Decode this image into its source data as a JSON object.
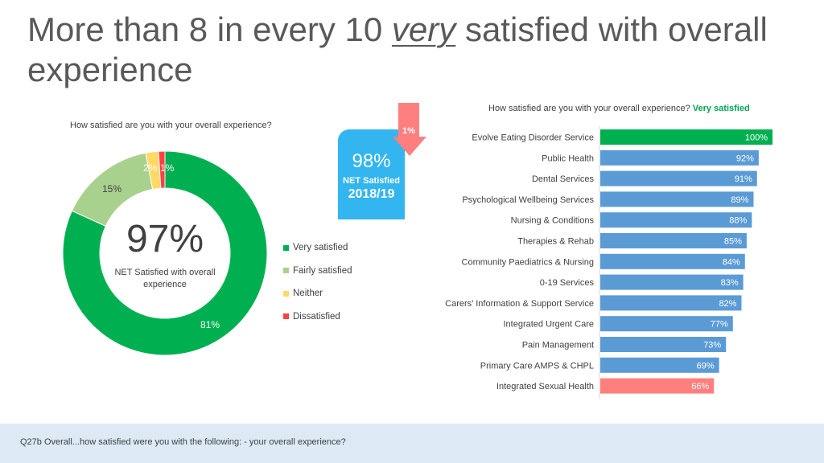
{
  "title": {
    "before": "More than 8 in every 10",
    "emphasis": "very",
    "after": "satisfied with overall experience"
  },
  "donut": {
    "question": "How satisfied  are you with your overall experience?",
    "center_value": "97%",
    "center_label": "NET Satisfied with overall experience",
    "slice_labels": {
      "very_satisfied": "81%",
      "fairly_satisfied": "15%",
      "neither": "2%",
      "dissatisfied": "1%"
    }
  },
  "legend": [
    {
      "label": "Very satisfied",
      "color": "#00b050"
    },
    {
      "label": "Fairly satisfied",
      "color": "#a9d18e"
    },
    {
      "label": "Neither",
      "color": "#ffd966"
    },
    {
      "label": "Dissatisfied",
      "color": "#ff4040"
    }
  ],
  "net_box": {
    "change": "1%",
    "percent": "98%",
    "label": "NET Satisfied",
    "year": "2018/19",
    "color": "#33b5f0",
    "arrow_color": "#ff7f7f"
  },
  "bar_chart": {
    "question": "How satisfied are you with your overall experience?",
    "highlight": "Very satisfied"
  },
  "footer": {
    "text": "Q27b Overall...how satisfied were you with the following: - your overall experience?"
  },
  "chart_data": [
    {
      "type": "pie",
      "variant": "donut",
      "title": "How satisfied  are you with your overall experience?",
      "categories": [
        "Very satisfied",
        "Fairly satisfied",
        "Neither",
        "Dissatisfied"
      ],
      "values": [
        81,
        15,
        2,
        1
      ],
      "colors": [
        "#00b050",
        "#a9d18e",
        "#ffd966",
        "#ff4040"
      ],
      "legend": "right"
    },
    {
      "type": "bar",
      "orientation": "horizontal",
      "title": "How satisfied are you with your overall experience? Very satisfied",
      "categories": [
        "Evolve Eating Disorder Service",
        "Public Health",
        "Dental Services",
        "Psychological Wellbeing Services",
        "Nursing & Conditions",
        "Therapies & Rehab",
        "Community Paediatrics & Nursing",
        "0-19 Services",
        "Carers’ Information & Support Service",
        "Integrated Urgent Care",
        "Pain Management",
        "Primary Care AMPS & CHPL",
        "Integrated Sexual Health"
      ],
      "values": [
        100,
        92,
        91,
        89,
        88,
        85,
        84,
        83,
        82,
        77,
        73,
        69,
        66
      ],
      "value_labels": [
        "100%",
        "92%",
        "91%",
        "89%",
        "88%",
        "85%",
        "84%",
        "83%",
        "82%",
        "77%",
        "73%",
        "69%",
        "66%"
      ],
      "colors": [
        "#00b050",
        "#5b9bd5",
        "#5b9bd5",
        "#5b9bd5",
        "#5b9bd5",
        "#5b9bd5",
        "#5b9bd5",
        "#5b9bd5",
        "#5b9bd5",
        "#5b9bd5",
        "#5b9bd5",
        "#5b9bd5",
        "#ff7f7f"
      ],
      "xlim": [
        0,
        100
      ]
    }
  ]
}
